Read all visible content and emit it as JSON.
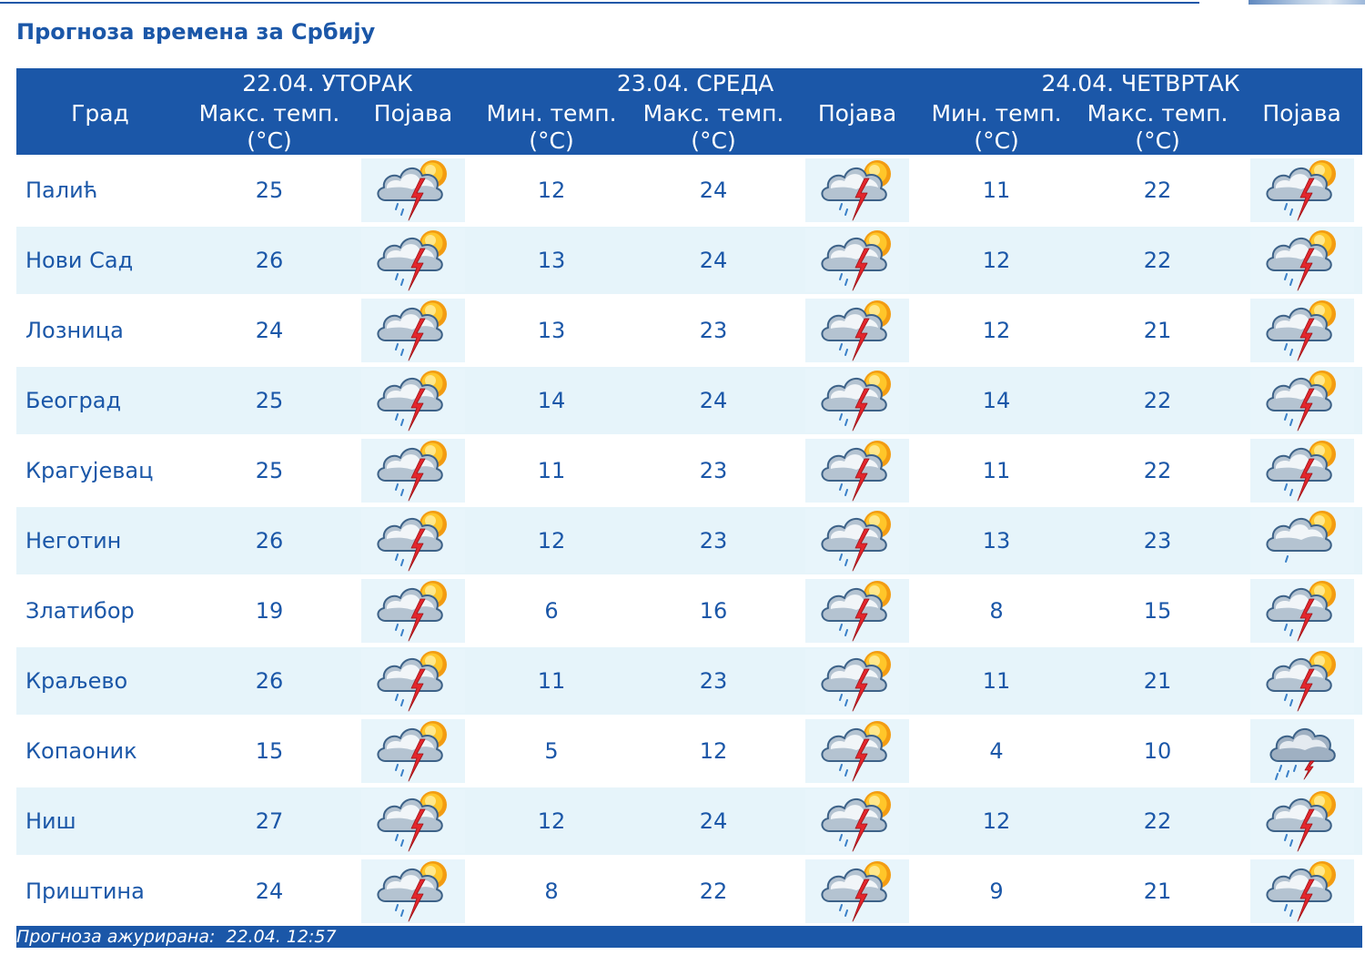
{
  "page": {
    "title": "Прогноза времена за Србију"
  },
  "colors": {
    "primary_blue": "#1b57a8",
    "row_alt_bg": "#e6f4fa",
    "icon_bg": "#e8f5fb",
    "header_text": "#ffffff"
  },
  "table": {
    "header": {
      "city": "Град",
      "days": [
        {
          "label": "22.04. УТОРАК",
          "columns": [
            {
              "label": "Макс. темп.",
              "unit": "(°C)"
            },
            {
              "label": "Појава"
            }
          ]
        },
        {
          "label": "23.04. СРЕДА",
          "columns": [
            {
              "label": "Мин. темп.",
              "unit": "(°C)"
            },
            {
              "label": "Макс. темп.",
              "unit": "(°C)"
            },
            {
              "label": "Појава"
            }
          ]
        },
        {
          "label": "24.04. ЧЕТВРТАК",
          "columns": [
            {
              "label": "Мин. темп.",
              "unit": "(°C)"
            },
            {
              "label": "Макс. темп.",
              "unit": "(°C)"
            },
            {
              "label": "Појава"
            }
          ]
        }
      ]
    },
    "rows": [
      {
        "city": "Палић",
        "days": [
          {
            "max": 25,
            "icon": "partly-cloudy-thunderstorm-icon"
          },
          {
            "min": 12,
            "max": 24,
            "icon": "partly-cloudy-thunderstorm-icon"
          },
          {
            "min": 11,
            "max": 22,
            "icon": "partly-cloudy-thunderstorm-icon"
          }
        ]
      },
      {
        "city": "Нови Сад",
        "days": [
          {
            "max": 26,
            "icon": "partly-cloudy-thunderstorm-icon"
          },
          {
            "min": 13,
            "max": 24,
            "icon": "partly-cloudy-thunderstorm-icon"
          },
          {
            "min": 12,
            "max": 22,
            "icon": "partly-cloudy-thunderstorm-icon"
          }
        ]
      },
      {
        "city": "Лозница",
        "days": [
          {
            "max": 24,
            "icon": "partly-cloudy-thunderstorm-icon"
          },
          {
            "min": 13,
            "max": 23,
            "icon": "partly-cloudy-thunderstorm-icon"
          },
          {
            "min": 12,
            "max": 21,
            "icon": "partly-cloudy-thunderstorm-icon"
          }
        ]
      },
      {
        "city": "Београд",
        "days": [
          {
            "max": 25,
            "icon": "partly-cloudy-thunderstorm-icon"
          },
          {
            "min": 14,
            "max": 24,
            "icon": "partly-cloudy-thunderstorm-icon"
          },
          {
            "min": 14,
            "max": 22,
            "icon": "partly-cloudy-thunderstorm-icon"
          }
        ]
      },
      {
        "city": "Крагујевац",
        "days": [
          {
            "max": 25,
            "icon": "partly-cloudy-thunderstorm-icon"
          },
          {
            "min": 11,
            "max": 23,
            "icon": "partly-cloudy-thunderstorm-icon"
          },
          {
            "min": 11,
            "max": 22,
            "icon": "partly-cloudy-thunderstorm-icon"
          }
        ]
      },
      {
        "city": "Неготин",
        "days": [
          {
            "max": 26,
            "icon": "partly-cloudy-thunderstorm-icon"
          },
          {
            "min": 12,
            "max": 23,
            "icon": "partly-cloudy-thunderstorm-icon"
          },
          {
            "min": 13,
            "max": 23,
            "icon": "partly-cloudy-light-rain-icon"
          }
        ]
      },
      {
        "city": "Златибор",
        "days": [
          {
            "max": 19,
            "icon": "partly-cloudy-thunderstorm-icon"
          },
          {
            "min": 6,
            "max": 16,
            "icon": "partly-cloudy-thunderstorm-icon"
          },
          {
            "min": 8,
            "max": 15,
            "icon": "partly-cloudy-thunderstorm-icon"
          }
        ]
      },
      {
        "city": "Краљево",
        "days": [
          {
            "max": 26,
            "icon": "partly-cloudy-thunderstorm-icon"
          },
          {
            "min": 11,
            "max": 23,
            "icon": "partly-cloudy-thunderstorm-icon"
          },
          {
            "min": 11,
            "max": 21,
            "icon": "partly-cloudy-thunderstorm-icon"
          }
        ]
      },
      {
        "city": "Копаоник",
        "days": [
          {
            "max": 15,
            "icon": "partly-cloudy-thunderstorm-icon"
          },
          {
            "min": 5,
            "max": 12,
            "icon": "partly-cloudy-thunderstorm-icon"
          },
          {
            "min": 4,
            "max": 10,
            "icon": "cloudy-rain-thunderstorm-icon"
          }
        ]
      },
      {
        "city": "Ниш",
        "days": [
          {
            "max": 27,
            "icon": "partly-cloudy-thunderstorm-icon"
          },
          {
            "min": 12,
            "max": 24,
            "icon": "partly-cloudy-thunderstorm-icon"
          },
          {
            "min": 12,
            "max": 22,
            "icon": "partly-cloudy-thunderstorm-icon"
          }
        ]
      },
      {
        "city": "Приштина",
        "days": [
          {
            "max": 24,
            "icon": "partly-cloudy-thunderstorm-icon"
          },
          {
            "min": 8,
            "max": 22,
            "icon": "partly-cloudy-thunderstorm-icon"
          },
          {
            "min": 9,
            "max": 21,
            "icon": "partly-cloudy-thunderstorm-icon"
          }
        ]
      }
    ]
  },
  "footer": {
    "updated_label": "Прогноза ажурирана:",
    "updated_value": "22.04. 12:57"
  }
}
